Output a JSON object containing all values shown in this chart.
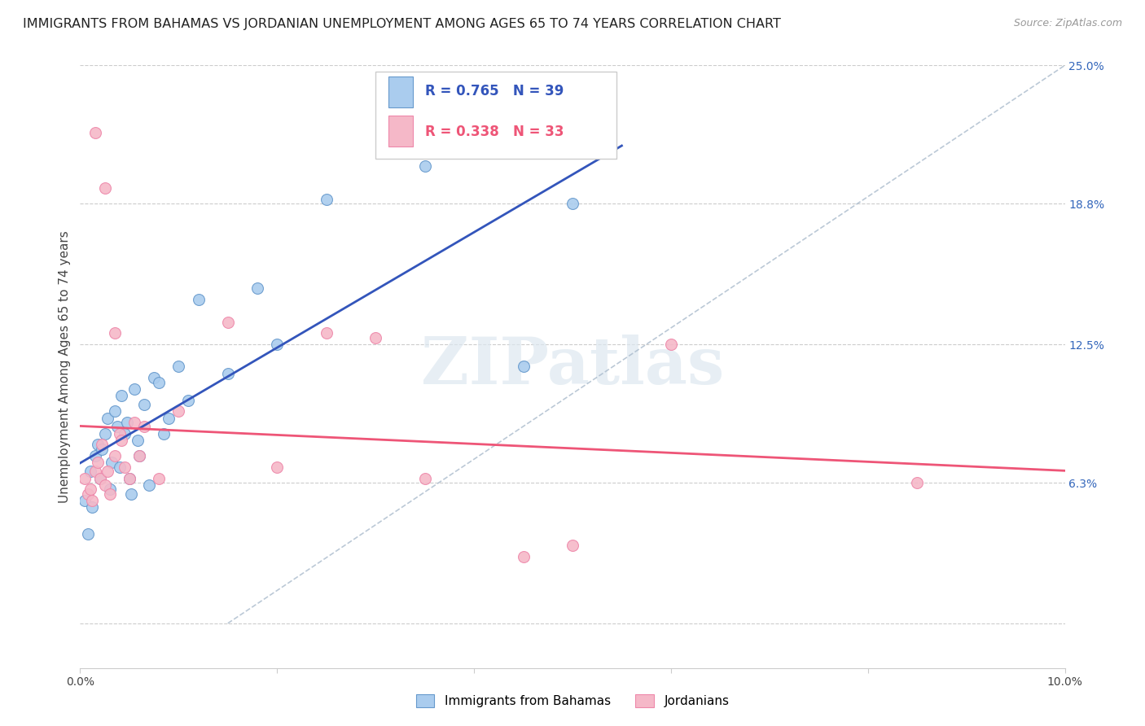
{
  "title": "IMMIGRANTS FROM BAHAMAS VS JORDANIAN UNEMPLOYMENT AMONG AGES 65 TO 74 YEARS CORRELATION CHART",
  "source": "Source: ZipAtlas.com",
  "ylabel_left": "Unemployment Among Ages 65 to 74 years",
  "x_min": 0.0,
  "x_max": 10.0,
  "y_min": -2.0,
  "y_max": 25.0,
  "y_ticks_right": [
    0.0,
    6.3,
    12.5,
    18.8,
    25.0
  ],
  "y_tick_labels_right": [
    "",
    "6.3%",
    "12.5%",
    "18.8%",
    "25.0%"
  ],
  "grid_color": "#cccccc",
  "background_color": "#ffffff",
  "blue_color": "#aaccee",
  "pink_color": "#f5b8c8",
  "blue_edge_color": "#6699cc",
  "pink_edge_color": "#ee88aa",
  "blue_line_color": "#3355bb",
  "pink_line_color": "#ee5577",
  "diag_line_color": "#aabbcc",
  "blue_R": 0.765,
  "blue_N": 39,
  "pink_R": 0.338,
  "pink_N": 33,
  "blue_label": "Immigrants from Bahamas",
  "pink_label": "Jordanians",
  "blue_scatter_x": [
    0.05,
    0.08,
    0.1,
    0.12,
    0.15,
    0.18,
    0.2,
    0.22,
    0.25,
    0.28,
    0.3,
    0.32,
    0.35,
    0.38,
    0.4,
    0.42,
    0.45,
    0.48,
    0.5,
    0.52,
    0.55,
    0.58,
    0.6,
    0.65,
    0.7,
    0.75,
    0.8,
    0.85,
    0.9,
    1.0,
    1.1,
    1.2,
    1.5,
    1.8,
    2.0,
    2.5,
    3.5,
    4.5,
    5.0
  ],
  "blue_scatter_y": [
    5.5,
    4.0,
    6.8,
    5.2,
    7.5,
    8.0,
    6.5,
    7.8,
    8.5,
    9.2,
    6.0,
    7.2,
    9.5,
    8.8,
    7.0,
    10.2,
    8.5,
    9.0,
    6.5,
    5.8,
    10.5,
    8.2,
    7.5,
    9.8,
    6.2,
    11.0,
    10.8,
    8.5,
    9.2,
    11.5,
    10.0,
    14.5,
    11.2,
    15.0,
    12.5,
    19.0,
    20.5,
    11.5,
    18.8
  ],
  "pink_scatter_x": [
    0.05,
    0.08,
    0.1,
    0.12,
    0.15,
    0.18,
    0.2,
    0.22,
    0.25,
    0.28,
    0.3,
    0.35,
    0.4,
    0.42,
    0.45,
    0.5,
    0.55,
    0.6,
    0.65,
    0.8,
    1.0,
    1.5,
    2.0,
    2.5,
    3.0,
    3.5,
    4.5,
    5.0,
    6.0,
    8.5,
    0.15,
    0.25,
    0.35
  ],
  "pink_scatter_y": [
    6.5,
    5.8,
    6.0,
    5.5,
    6.8,
    7.2,
    6.5,
    8.0,
    6.2,
    6.8,
    5.8,
    7.5,
    8.5,
    8.2,
    7.0,
    6.5,
    9.0,
    7.5,
    8.8,
    6.5,
    9.5,
    13.5,
    7.0,
    13.0,
    12.8,
    6.5,
    3.0,
    3.5,
    12.5,
    6.3,
    22.0,
    19.5,
    13.0
  ],
  "watermark_text": "ZIPatlas",
  "title_fontsize": 11.5,
  "source_fontsize": 9,
  "axis_label_fontsize": 11,
  "tick_fontsize": 10,
  "legend_fontsize": 12,
  "marker_size": 100,
  "line_width": 2.0
}
